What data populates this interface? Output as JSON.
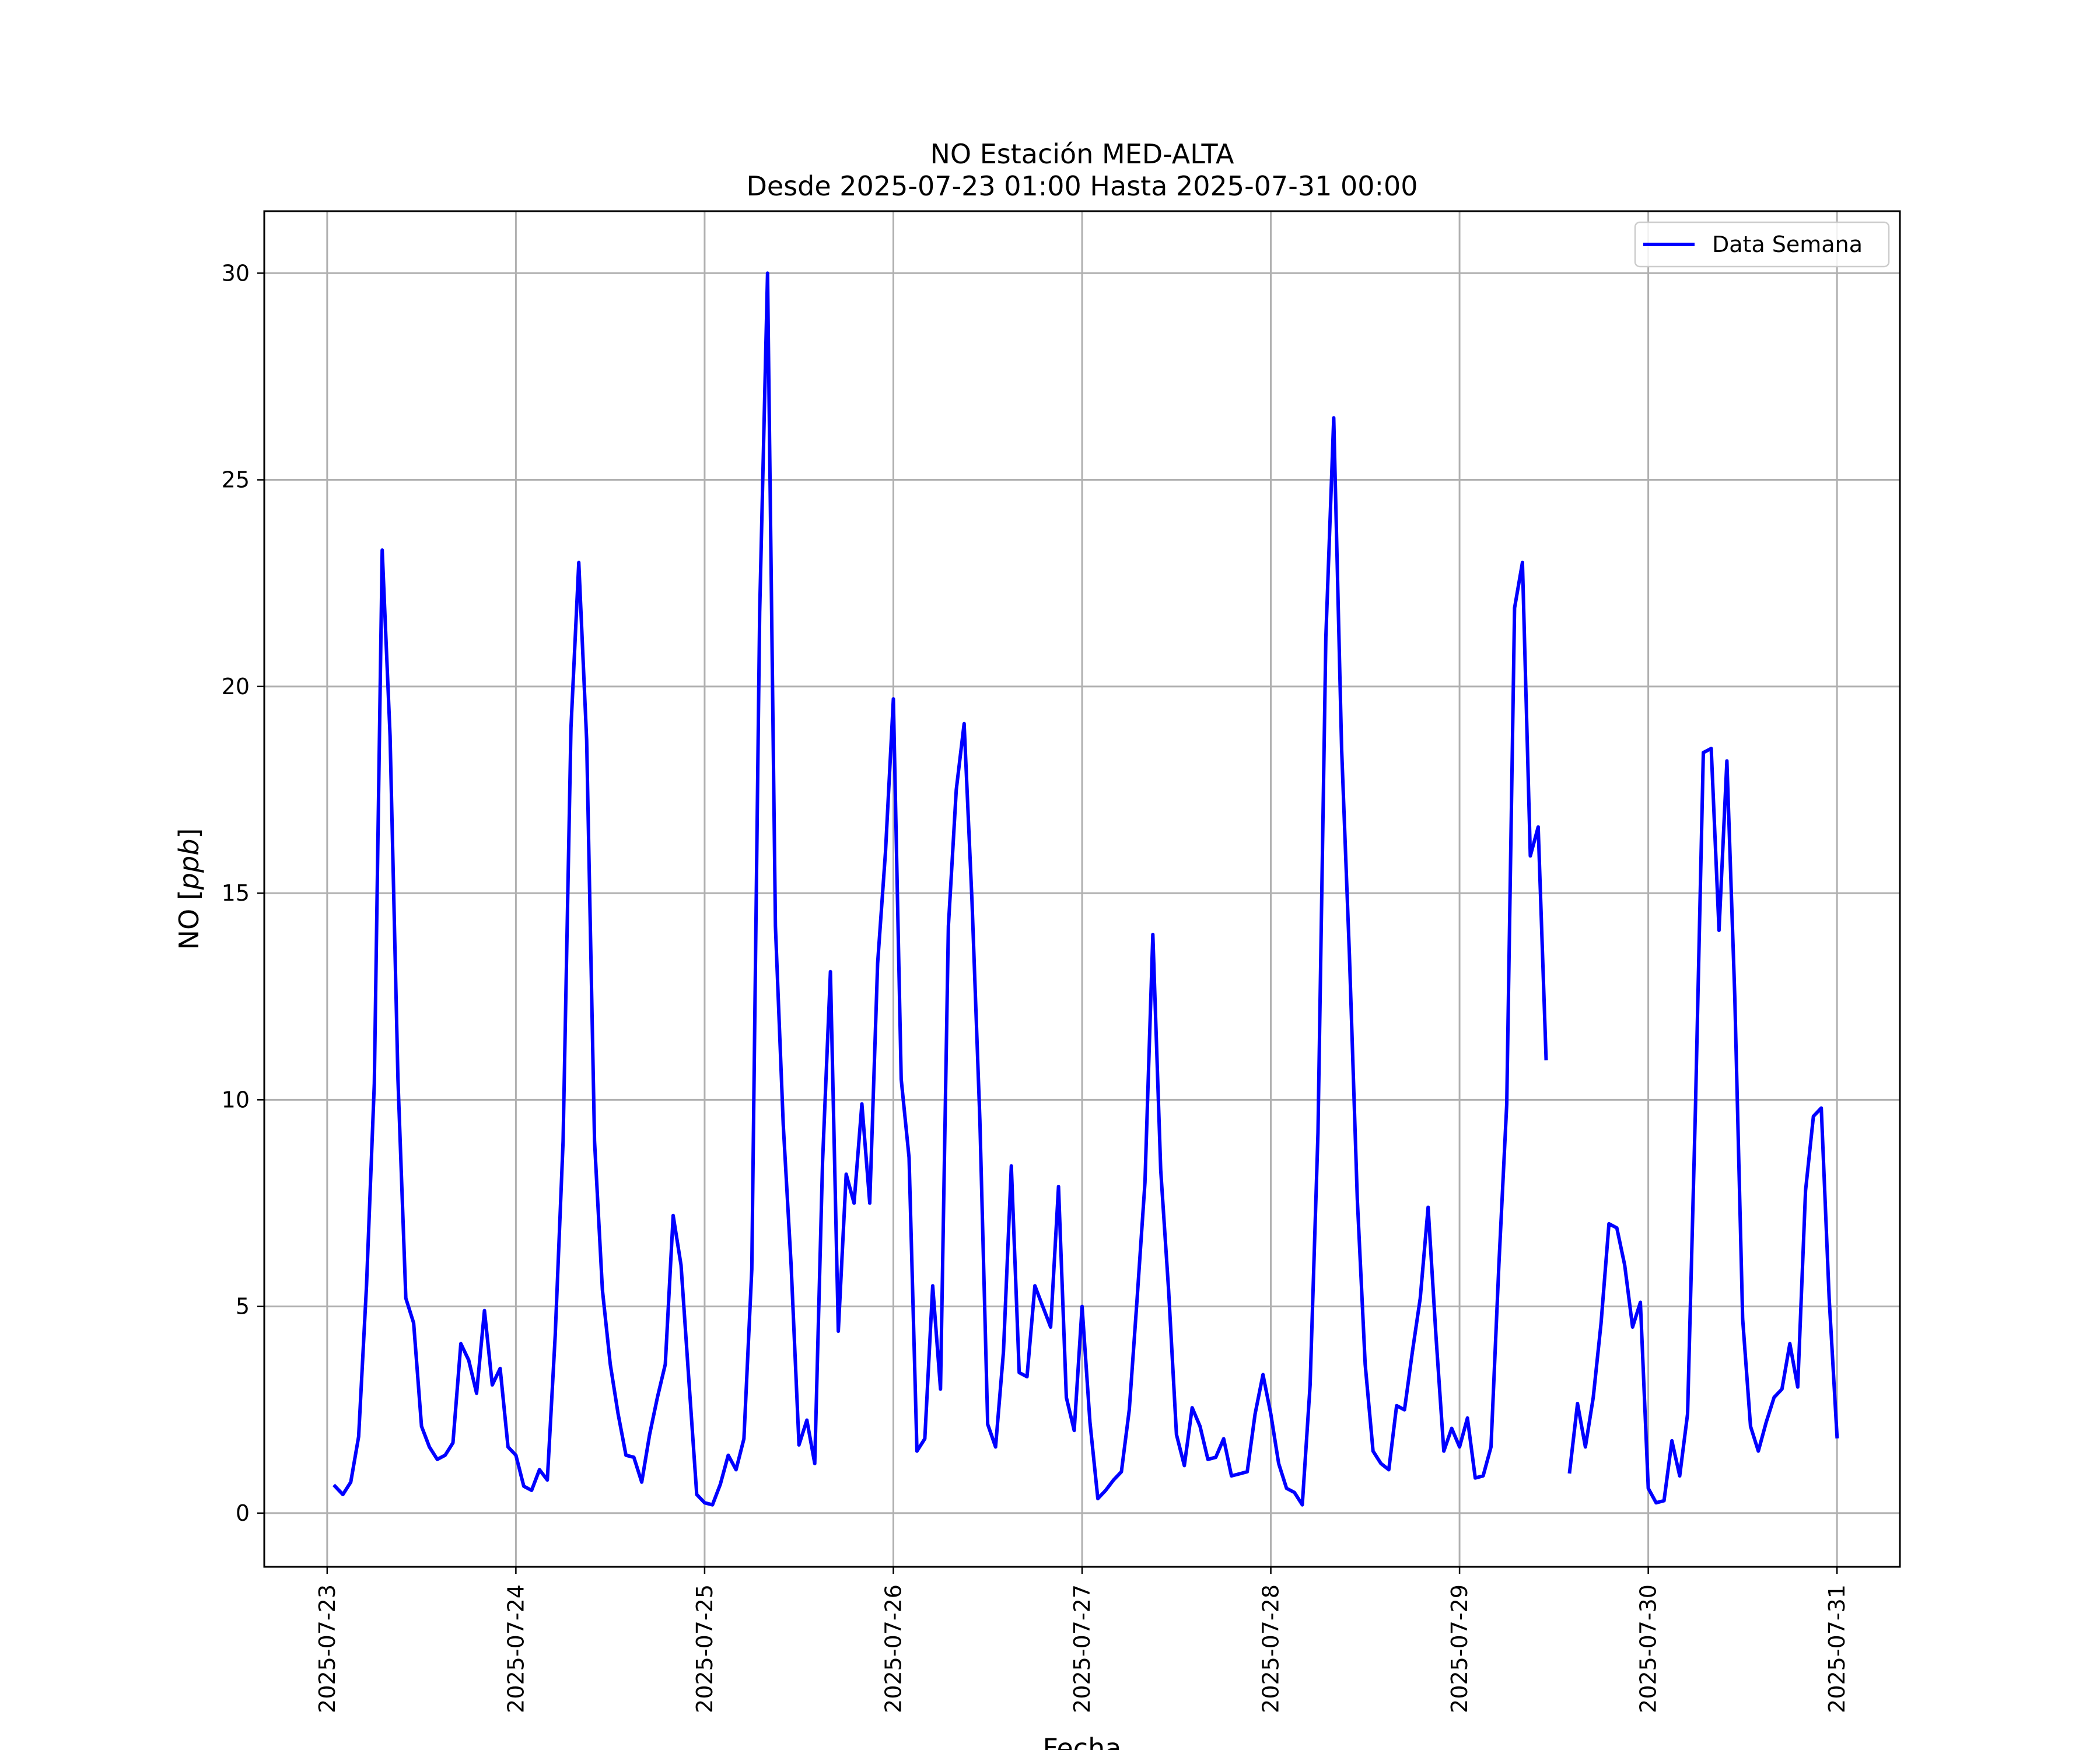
{
  "chart_data": {
    "type": "line",
    "title": "NO Estación MED-ALTA",
    "subtitle": "Desde 2025-07-23 01:00 Hasta 2025-07-31 00:00",
    "xlabel": "Fecha",
    "ylabel": "NO [ppb]",
    "ylabel_prefix": "NO [",
    "ylabel_unit": "ppb",
    "ylabel_suffix": "]",
    "xlim": [
      "2025-07-22 16:00",
      "2025-07-31 08:00"
    ],
    "ylim": [
      -1.3,
      31.5
    ],
    "x_ticks": [
      "2025-07-23",
      "2025-07-24",
      "2025-07-25",
      "2025-07-26",
      "2025-07-27",
      "2025-07-28",
      "2025-07-29",
      "2025-07-30",
      "2025-07-31"
    ],
    "y_ticks": [
      0,
      5,
      10,
      15,
      20,
      25,
      30
    ],
    "y_tick_labels": [
      "0",
      "5",
      "10",
      "15",
      "20",
      "25",
      "30"
    ],
    "grid": true,
    "legend_position": "top-right",
    "series": [
      {
        "name": "Data Semana",
        "color": "#0000ff",
        "points": [
          [
            "2025-07-23 01:00",
            0.65
          ],
          [
            "2025-07-23 02:00",
            0.45
          ],
          [
            "2025-07-23 03:00",
            0.75
          ],
          [
            "2025-07-23 04:00",
            1.85
          ],
          [
            "2025-07-23 05:00",
            5.5
          ],
          [
            "2025-07-23 06:00",
            10.4
          ],
          [
            "2025-07-23 07:00",
            23.3
          ],
          [
            "2025-07-23 08:00",
            18.8
          ],
          [
            "2025-07-23 09:00",
            10.5
          ],
          [
            "2025-07-23 10:00",
            5.2
          ],
          [
            "2025-07-23 11:00",
            4.6
          ],
          [
            "2025-07-23 12:00",
            2.1
          ],
          [
            "2025-07-23 13:00",
            1.6
          ],
          [
            "2025-07-23 14:00",
            1.3
          ],
          [
            "2025-07-23 15:00",
            1.4
          ],
          [
            "2025-07-23 16:00",
            1.7
          ],
          [
            "2025-07-23 17:00",
            4.1
          ],
          [
            "2025-07-23 18:00",
            3.7
          ],
          [
            "2025-07-23 19:00",
            2.9
          ],
          [
            "2025-07-23 20:00",
            4.9
          ],
          [
            "2025-07-23 21:00",
            3.1
          ],
          [
            "2025-07-23 22:00",
            3.5
          ],
          [
            "2025-07-23 23:00",
            1.6
          ],
          [
            "2025-07-24 00:00",
            1.4
          ],
          [
            "2025-07-24 01:00",
            0.65
          ],
          [
            "2025-07-24 02:00",
            0.55
          ],
          [
            "2025-07-24 03:00",
            1.05
          ],
          [
            "2025-07-24 04:00",
            0.8
          ],
          [
            "2025-07-24 05:00",
            4.3
          ],
          [
            "2025-07-24 06:00",
            9.0
          ],
          [
            "2025-07-24 07:00",
            19.0
          ],
          [
            "2025-07-24 08:00",
            23.0
          ],
          [
            "2025-07-24 09:00",
            18.7
          ],
          [
            "2025-07-24 10:00",
            9.0
          ],
          [
            "2025-07-24 11:00",
            5.4
          ],
          [
            "2025-07-24 12:00",
            3.6
          ],
          [
            "2025-07-24 13:00",
            2.4
          ],
          [
            "2025-07-24 14:00",
            1.4
          ],
          [
            "2025-07-24 15:00",
            1.35
          ],
          [
            "2025-07-24 16:00",
            0.75
          ],
          [
            "2025-07-24 17:00",
            1.9
          ],
          [
            "2025-07-24 18:00",
            2.8
          ],
          [
            "2025-07-24 19:00",
            3.6
          ],
          [
            "2025-07-24 20:00",
            7.2
          ],
          [
            "2025-07-24 21:00",
            6.0
          ],
          [
            "2025-07-24 22:00",
            3.2
          ],
          [
            "2025-07-24 23:00",
            0.45
          ],
          [
            "2025-07-25 00:00",
            0.25
          ],
          [
            "2025-07-25 01:00",
            0.2
          ],
          [
            "2025-07-25 02:00",
            0.7
          ],
          [
            "2025-07-25 03:00",
            1.4
          ],
          [
            "2025-07-25 04:00",
            1.05
          ],
          [
            "2025-07-25 05:00",
            1.8
          ],
          [
            "2025-07-25 06:00",
            5.9
          ],
          [
            "2025-07-25 07:00",
            21.8
          ],
          [
            "2025-07-25 08:00",
            30.0
          ],
          [
            "2025-07-25 09:00",
            14.2
          ],
          [
            "2025-07-25 10:00",
            9.4
          ],
          [
            "2025-07-25 11:00",
            6.0
          ],
          [
            "2025-07-25 12:00",
            1.65
          ],
          [
            "2025-07-25 13:00",
            2.25
          ],
          [
            "2025-07-25 14:00",
            1.2
          ],
          [
            "2025-07-25 15:00",
            8.5
          ],
          [
            "2025-07-25 16:00",
            13.1
          ],
          [
            "2025-07-25 17:00",
            4.4
          ],
          [
            "2025-07-25 18:00",
            8.2
          ],
          [
            "2025-07-25 19:00",
            7.5
          ],
          [
            "2025-07-25 20:00",
            9.9
          ],
          [
            "2025-07-25 21:00",
            7.5
          ],
          [
            "2025-07-25 22:00",
            13.3
          ],
          [
            "2025-07-25 23:00",
            16.0
          ],
          [
            "2025-07-26 00:00",
            19.7
          ],
          [
            "2025-07-26 01:00",
            10.5
          ],
          [
            "2025-07-26 02:00",
            8.6
          ],
          [
            "2025-07-26 03:00",
            1.5
          ],
          [
            "2025-07-26 04:00",
            1.8
          ],
          [
            "2025-07-26 05:00",
            5.5
          ],
          [
            "2025-07-26 06:00",
            3.0
          ],
          [
            "2025-07-26 07:00",
            14.2
          ],
          [
            "2025-07-26 08:00",
            17.5
          ],
          [
            "2025-07-26 09:00",
            19.1
          ],
          [
            "2025-07-26 10:00",
            14.8
          ],
          [
            "2025-07-26 11:00",
            9.5
          ],
          [
            "2025-07-26 12:00",
            2.15
          ],
          [
            "2025-07-26 13:00",
            1.6
          ],
          [
            "2025-07-26 14:00",
            3.9
          ],
          [
            "2025-07-26 15:00",
            8.4
          ],
          [
            "2025-07-26 16:00",
            3.4
          ],
          [
            "2025-07-26 17:00",
            3.3
          ],
          [
            "2025-07-26 18:00",
            5.5
          ],
          [
            "2025-07-26 19:00",
            5.0
          ],
          [
            "2025-07-26 20:00",
            4.5
          ],
          [
            "2025-07-26 21:00",
            7.9
          ],
          [
            "2025-07-26 22:00",
            2.8
          ],
          [
            "2025-07-26 23:00",
            2.0
          ],
          [
            "2025-07-27 00:00",
            5.0
          ],
          [
            "2025-07-27 01:00",
            2.2
          ],
          [
            "2025-07-27 02:00",
            0.35
          ],
          [
            "2025-07-27 03:00",
            0.55
          ],
          [
            "2025-07-27 04:00",
            0.8
          ],
          [
            "2025-07-27 05:00",
            1.0
          ],
          [
            "2025-07-27 06:00",
            2.5
          ],
          [
            "2025-07-27 07:00",
            5.2
          ],
          [
            "2025-07-27 08:00",
            8.0
          ],
          [
            "2025-07-27 09:00",
            14.0
          ],
          [
            "2025-07-27 10:00",
            8.3
          ],
          [
            "2025-07-27 11:00",
            5.4
          ],
          [
            "2025-07-27 12:00",
            1.9
          ],
          [
            "2025-07-27 13:00",
            1.15
          ],
          [
            "2025-07-27 14:00",
            2.55
          ],
          [
            "2025-07-27 15:00",
            2.1
          ],
          [
            "2025-07-27 16:00",
            1.3
          ],
          [
            "2025-07-27 17:00",
            1.35
          ],
          [
            "2025-07-27 18:00",
            1.8
          ],
          [
            "2025-07-27 19:00",
            0.9
          ],
          [
            "2025-07-27 20:00",
            0.95
          ],
          [
            "2025-07-27 21:00",
            1.0
          ],
          [
            "2025-07-27 22:00",
            2.4
          ],
          [
            "2025-07-27 23:00",
            3.35
          ],
          [
            "2025-07-28 00:00",
            2.4
          ],
          [
            "2025-07-28 01:00",
            1.2
          ],
          [
            "2025-07-28 02:00",
            0.6
          ],
          [
            "2025-07-28 03:00",
            0.5
          ],
          [
            "2025-07-28 04:00",
            0.2
          ],
          [
            "2025-07-28 05:00",
            3.1
          ],
          [
            "2025-07-28 06:00",
            9.2
          ],
          [
            "2025-07-28 07:00",
            21.2
          ],
          [
            "2025-07-28 08:00",
            26.5
          ],
          [
            "2025-07-28 09:00",
            18.5
          ],
          [
            "2025-07-28 10:00",
            13.5
          ],
          [
            "2025-07-28 11:00",
            7.6
          ],
          [
            "2025-07-28 12:00",
            3.6
          ],
          [
            "2025-07-28 13:00",
            1.5
          ],
          [
            "2025-07-28 14:00",
            1.2
          ],
          [
            "2025-07-28 15:00",
            1.05
          ],
          [
            "2025-07-28 16:00",
            2.6
          ],
          [
            "2025-07-28 17:00",
            2.5
          ],
          [
            "2025-07-28 18:00",
            3.9
          ],
          [
            "2025-07-28 19:00",
            5.2
          ],
          [
            "2025-07-28 20:00",
            7.4
          ],
          [
            "2025-07-28 21:00",
            4.3
          ],
          [
            "2025-07-28 22:00",
            1.5
          ],
          [
            "2025-07-28 23:00",
            2.05
          ],
          [
            "2025-07-29 00:00",
            1.6
          ],
          [
            "2025-07-29 01:00",
            2.3
          ],
          [
            "2025-07-29 02:00",
            0.85
          ],
          [
            "2025-07-29 03:00",
            0.9
          ],
          [
            "2025-07-29 04:00",
            1.6
          ],
          [
            "2025-07-29 05:00",
            6.0
          ],
          [
            "2025-07-29 06:00",
            9.9
          ],
          [
            "2025-07-29 07:00",
            21.9
          ],
          [
            "2025-07-29 08:00",
            23.0
          ],
          [
            "2025-07-29 09:00",
            15.9
          ],
          [
            "2025-07-29 10:00",
            16.6
          ],
          [
            "2025-07-29 11:00",
            11.0
          ],
          [
            "2025-07-29 12:00",
            null
          ],
          [
            "2025-07-29 13:00",
            null
          ],
          [
            "2025-07-29 14:00",
            1.0
          ],
          [
            "2025-07-29 15:00",
            2.65
          ],
          [
            "2025-07-29 16:00",
            1.6
          ],
          [
            "2025-07-29 17:00",
            2.8
          ],
          [
            "2025-07-29 18:00",
            4.6
          ],
          [
            "2025-07-29 19:00",
            7.0
          ],
          [
            "2025-07-29 20:00",
            6.9
          ],
          [
            "2025-07-29 21:00",
            6.0
          ],
          [
            "2025-07-29 22:00",
            4.5
          ],
          [
            "2025-07-29 23:00",
            5.1
          ],
          [
            "2025-07-30 00:00",
            0.6
          ],
          [
            "2025-07-30 01:00",
            0.25
          ],
          [
            "2025-07-30 02:00",
            0.3
          ],
          [
            "2025-07-30 03:00",
            1.75
          ],
          [
            "2025-07-30 04:00",
            0.9
          ],
          [
            "2025-07-30 05:00",
            2.4
          ],
          [
            "2025-07-30 06:00",
            9.8
          ],
          [
            "2025-07-30 07:00",
            18.4
          ],
          [
            "2025-07-30 08:00",
            18.5
          ],
          [
            "2025-07-30 09:00",
            14.1
          ],
          [
            "2025-07-30 10:00",
            18.2
          ],
          [
            "2025-07-30 11:00",
            12.5
          ],
          [
            "2025-07-30 12:00",
            4.7
          ],
          [
            "2025-07-30 13:00",
            2.1
          ],
          [
            "2025-07-30 14:00",
            1.5
          ],
          [
            "2025-07-30 15:00",
            2.2
          ],
          [
            "2025-07-30 16:00",
            2.8
          ],
          [
            "2025-07-30 17:00",
            3.0
          ],
          [
            "2025-07-30 18:00",
            4.1
          ],
          [
            "2025-07-30 19:00",
            3.05
          ],
          [
            "2025-07-30 20:00",
            7.8
          ],
          [
            "2025-07-30 21:00",
            9.6
          ],
          [
            "2025-07-30 22:00",
            9.8
          ],
          [
            "2025-07-30 23:00",
            5.2
          ],
          [
            "2025-07-31 00:00",
            1.85
          ]
        ]
      }
    ]
  }
}
